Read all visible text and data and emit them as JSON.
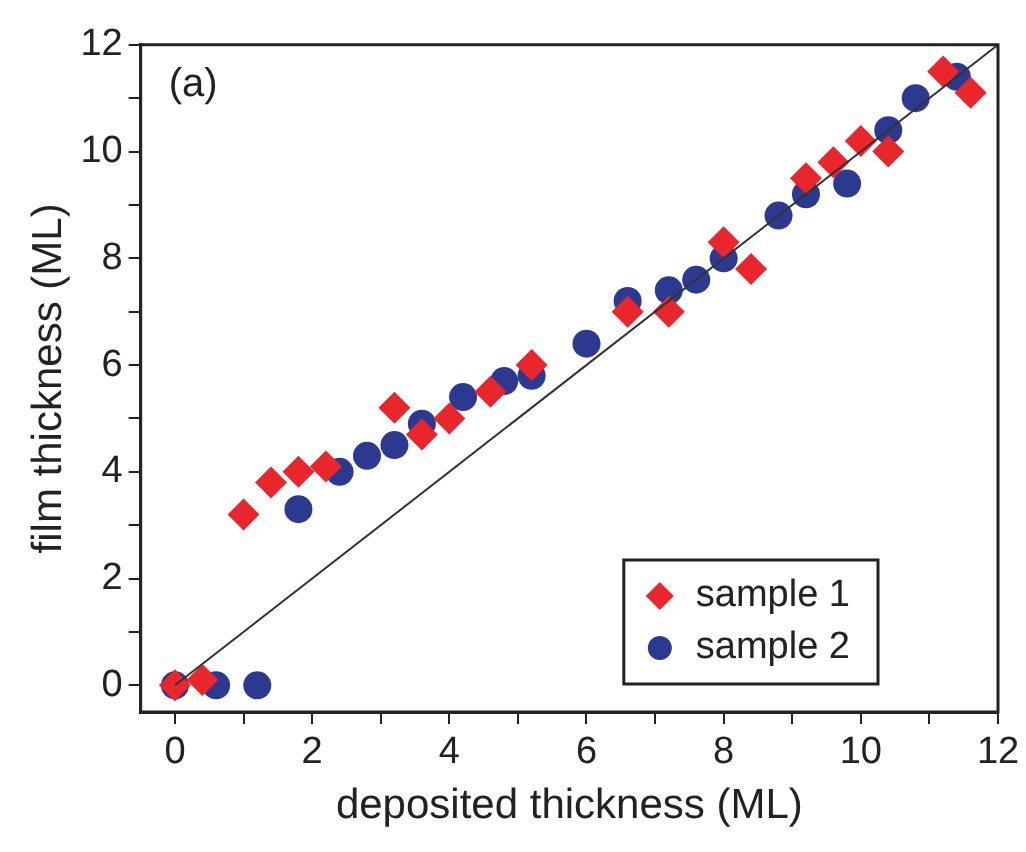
{
  "chart_data": {
    "type": "scatter",
    "xlabel": "deposited thickness (ML)",
    "ylabel": "film thickness (ML)",
    "annotations": [
      "(a)"
    ],
    "xlim": [
      -0.5,
      12
    ],
    "ylim": [
      -0.5,
      12
    ],
    "xticks": [
      0,
      {
        "value": 1,
        "label": null
      },
      2,
      {
        "value": 3,
        "label": null
      },
      4,
      {
        "value": 5,
        "label": null
      },
      6,
      {
        "value": 7,
        "label": null
      },
      8,
      {
        "value": 9,
        "label": null
      },
      10,
      {
        "value": 11,
        "label": null
      },
      12
    ],
    "yticks": [
      0,
      {
        "value": 1,
        "label": null
      },
      2,
      {
        "value": 3,
        "label": null
      },
      4,
      {
        "value": 5,
        "label": null
      },
      6,
      {
        "value": 7,
        "label": null
      },
      8,
      {
        "value": 9,
        "label": null
      },
      10,
      {
        "value": 11,
        "label": null
      },
      12
    ],
    "grid": false,
    "legend": "bottom right",
    "series": [
      {
        "type": "line",
        "marker": "none",
        "color": "#333333",
        "x": [
          0,
          12
        ],
        "values": [
          0,
          12
        ]
      },
      {
        "name": "sample 1",
        "marker": "diamond",
        "color": "#e8262b",
        "x": [
          0,
          0.4,
          1.0,
          1.4,
          1.8,
          2.2,
          3.2,
          3.6,
          4.0,
          4.6,
          5.2,
          6.6,
          7.2,
          8.0,
          8.4,
          9.2,
          9.6,
          10.0,
          10.4,
          11.2,
          11.6
        ],
        "values": [
          0,
          0.1,
          3.2,
          3.8,
          4.0,
          4.1,
          5.2,
          4.7,
          5.0,
          5.5,
          6.0,
          7.0,
          7.0,
          8.3,
          7.8,
          9.5,
          9.8,
          10.2,
          10.0,
          11.5,
          11.1
        ]
      },
      {
        "name": "sample 2",
        "marker": "circle",
        "color": "#2b3990",
        "x": [
          0,
          0.6,
          1.2,
          1.8,
          2.4,
          2.8,
          3.2,
          3.6,
          4.2,
          4.8,
          5.2,
          6.0,
          6.6,
          7.2,
          7.6,
          8.0,
          8.8,
          9.2,
          9.8,
          10.4,
          10.8,
          11.4
        ],
        "values": [
          0,
          0,
          0,
          3.3,
          4.0,
          4.3,
          4.5,
          4.9,
          5.4,
          5.7,
          5.8,
          6.4,
          7.2,
          7.4,
          7.6,
          8.0,
          8.8,
          9.2,
          9.4,
          10.4,
          11.0,
          11.4
        ]
      }
    ]
  }
}
